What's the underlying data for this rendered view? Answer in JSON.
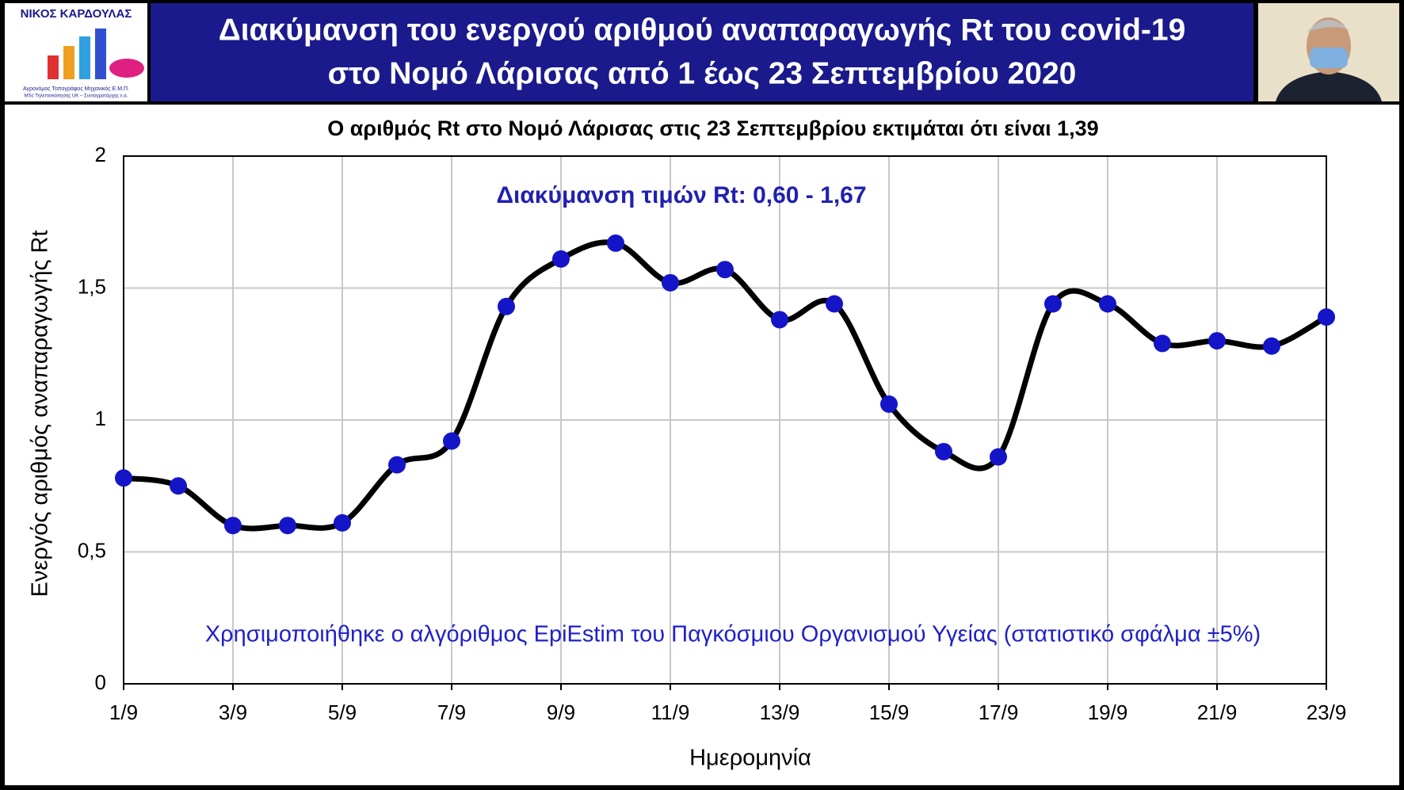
{
  "header": {
    "logo_name": "ΝΙΚΟΣ ΚΑΡΔΟΥΛΑΣ",
    "logo_line1": "Αγρονόμος Τοπογράφος Μηχανικός Ε.Μ.Π.",
    "logo_line2": "MSc Τηλεπισκόπησης UK – Συνταγματάρχης ε.α."
  },
  "chart_data": {
    "type": "line",
    "title": [
      "Διακύμανση του ενεργού αριθμού αναπαραγωγής Rt του covid-19",
      "στο Νομό Λάρισας από 1 έως 23 Σεπτεμβρίου 2020"
    ],
    "subtitle": "Ο αριθμός Rt στο Νομό Λάρισας στις 23 Σεπτεμβρίου εκτιμάται ότι είναι 1,39",
    "annotations": [
      "Διακύμανση τιμών Rt: 0,60 - 1,67",
      "Χρησιμοποιήθηκε ο αλγόριθμος EpiEstim του Παγκόσμιου Οργανισμού Υγείας (στατιστικό σφάλμα ±5%)"
    ],
    "x_label": "Ημερομηνία",
    "y_label": "Ενεργός αριθμός αναπαραγωγής Rt",
    "categories": [
      "1/9",
      null,
      "3/9",
      null,
      "5/9",
      null,
      "7/9",
      null,
      "9/9",
      null,
      "11/9",
      null,
      "13/9",
      null,
      "15/9",
      null,
      "17/9",
      null,
      "19/9",
      null,
      "21/9",
      null,
      "23/9"
    ],
    "series": [
      {
        "name": "Rt",
        "color": "#000000",
        "marker_color": "#1515c8",
        "values": [
          0.78,
          0.75,
          0.6,
          0.6,
          0.61,
          0.83,
          0.92,
          1.43,
          1.61,
          1.67,
          1.52,
          1.57,
          1.38,
          1.44,
          1.06,
          0.88,
          0.86,
          1.44,
          1.44,
          1.29,
          1.3,
          1.28,
          1.39
        ]
      }
    ],
    "ylim": [
      0,
      2
    ],
    "yticks": [
      0,
      {
        "value": 0.5,
        "label": "0,5"
      },
      1,
      {
        "value": 1.5,
        "label": "1,5"
      },
      2
    ],
    "grid": true
  }
}
